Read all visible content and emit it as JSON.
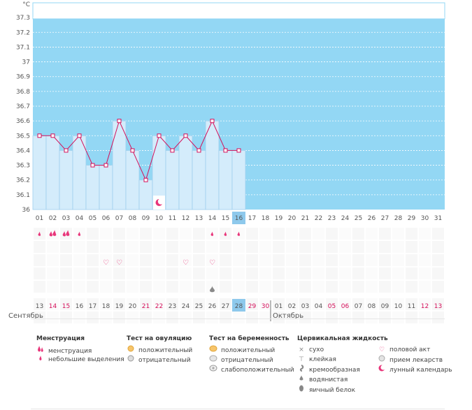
{
  "chart_data": {
    "type": "line",
    "unit": "°C",
    "ylim": [
      36,
      37.4
    ],
    "y_ticks": [
      "36",
      "36.1",
      "36.2",
      "36.3",
      "36.4",
      "36.5",
      "36.6",
      "36.7",
      "36.8",
      "36.9",
      "37",
      "37.1",
      "37.2",
      "37.3"
    ],
    "cycle_days": [
      "01",
      "02",
      "03",
      "04",
      "05",
      "06",
      "07",
      "08",
      "09",
      "10",
      "11",
      "12",
      "13",
      "14",
      "15",
      "16",
      "17",
      "18",
      "19",
      "20",
      "21",
      "22",
      "23",
      "24",
      "25",
      "26",
      "27",
      "28",
      "29",
      "30",
      "31"
    ],
    "current_day_index": 15,
    "temperatures": [
      36.5,
      36.5,
      36.4,
      36.5,
      36.3,
      36.3,
      36.6,
      36.4,
      36.2,
      36.5,
      36.4,
      36.5,
      36.4,
      36.6,
      36.4,
      36.4
    ],
    "dates": [
      "13",
      "14",
      "15",
      "16",
      "17",
      "18",
      "19",
      "20",
      "21",
      "22",
      "23",
      "24",
      "25",
      "26",
      "27",
      "28",
      "29",
      "30",
      "01",
      "02",
      "03",
      "04",
      "05",
      "06",
      "07",
      "08",
      "09",
      "10",
      "11",
      "12",
      "13"
    ],
    "weekend_flags": [
      false,
      true,
      true,
      false,
      false,
      false,
      false,
      false,
      true,
      true,
      false,
      false,
      false,
      false,
      false,
      false,
      true,
      true,
      false,
      false,
      false,
      false,
      true,
      true,
      false,
      false,
      false,
      false,
      false,
      true,
      true
    ],
    "current_date_index": 15,
    "months": [
      "Сентябрь",
      "Октябрь"
    ],
    "october_start_index": 18,
    "markers": {
      "moon_day_index": 9,
      "menstruation": [
        {
          "day": 0,
          "kind": "light"
        },
        {
          "day": 1,
          "kind": "heavy"
        },
        {
          "day": 2,
          "kind": "heavy"
        },
        {
          "day": 3,
          "kind": "light"
        },
        {
          "day": 13,
          "kind": "light"
        },
        {
          "day": 14,
          "kind": "light"
        },
        {
          "day": 15,
          "kind": "light"
        }
      ],
      "intercourse": [
        5,
        6,
        11,
        13
      ],
      "cervical_fluid": [
        13
      ]
    }
  },
  "legend": {
    "menstruation": {
      "title": "Менструация",
      "items": [
        {
          "icon": "heavy-drop-icon",
          "label": "менструация"
        },
        {
          "icon": "light-drop-icon",
          "label": "небольшие выделения"
        }
      ]
    },
    "ovulation": {
      "title": "Тест на овуляцию",
      "items": [
        {
          "icon": "positive-test-icon",
          "label": "положительный"
        },
        {
          "icon": "negative-test-icon",
          "label": "отрицательный"
        }
      ]
    },
    "pregnancy": {
      "title": "Тест на беременность",
      "items": [
        {
          "icon": "positive-test-icon",
          "label": "положительный"
        },
        {
          "icon": "negative-test-icon",
          "label": "отрицательный"
        },
        {
          "icon": "weak-positive-test-icon",
          "label": "слабоположительный"
        }
      ]
    },
    "cervical": {
      "title": "Цервикальная жидкость",
      "items": [
        {
          "icon": "dry-icon",
          "label": "сухо"
        },
        {
          "icon": "sticky-icon",
          "label": "клейкая"
        },
        {
          "icon": "creamy-icon",
          "label": "кремообразная"
        },
        {
          "icon": "watery-icon",
          "label": "водянистая"
        },
        {
          "icon": "egg-white-icon",
          "label": "яичный белок"
        }
      ]
    },
    "other": {
      "items": [
        {
          "icon": "heart-icon",
          "label": "половой акт"
        },
        {
          "icon": "pill-icon",
          "label": "прием лекарств"
        },
        {
          "icon": "moon-icon",
          "label": "лунный календарь"
        }
      ]
    }
  },
  "colors": {
    "sky": "#93d7f4",
    "bar": "#d4ecfb",
    "bar_edge": "#9fd0ee",
    "line": "#d4105a",
    "grid": "#ffffff",
    "highlight": "#8ec9ec",
    "weekend": "#d4105a",
    "pink": "#e8357a"
  }
}
